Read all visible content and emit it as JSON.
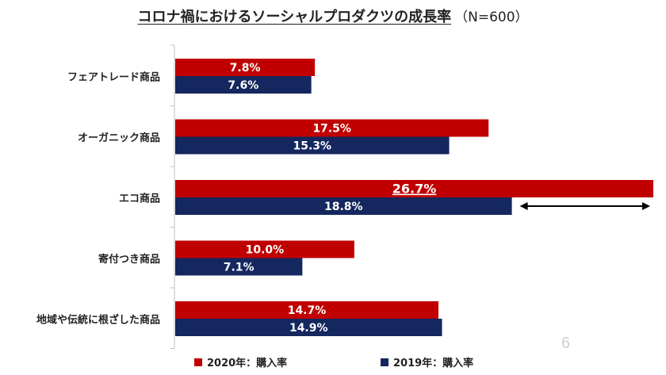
{
  "title": "コロナ禍におけるソーシャルプロダクツの成長率",
  "subtitle": "（N=600）",
  "page_number": "6",
  "colors": {
    "series_2020": "#c00000",
    "series_2019": "#14275e",
    "axis": "#bfbfbf",
    "label_text": "#ffffff"
  },
  "legend": [
    {
      "name": "2020年：購入率",
      "color": "#c00000"
    },
    {
      "name": "2019年：購入率",
      "color": "#14275e"
    }
  ],
  "chart_data": {
    "type": "bar",
    "orientation": "horizontal",
    "categories": [
      "フェアトレード商品",
      "オーガニック商品",
      "エコ商品",
      "寄付つき商品",
      "地域や伝統に根ざした商品"
    ],
    "series": [
      {
        "name": "2020年：購入率",
        "values": [
          7.8,
          17.5,
          26.7,
          10.0,
          14.7
        ],
        "labels": [
          "7.8%",
          "17.5%",
          "26.7%",
          "10.0%",
          "14.7%"
        ]
      },
      {
        "name": "2019年：購入率",
        "values": [
          7.6,
          15.3,
          18.8,
          7.1,
          14.9
        ],
        "labels": [
          "7.6%",
          "15.3%",
          "18.8%",
          "7.1%",
          "14.9%"
        ]
      }
    ],
    "xlim": [
      0,
      26.7
    ],
    "grid": false,
    "legend_position": "bottom",
    "annotation": {
      "type": "double-arrow",
      "category": "エコ商品",
      "from": 18.8,
      "to": 26.7
    },
    "highlight_label": "26.7%"
  }
}
